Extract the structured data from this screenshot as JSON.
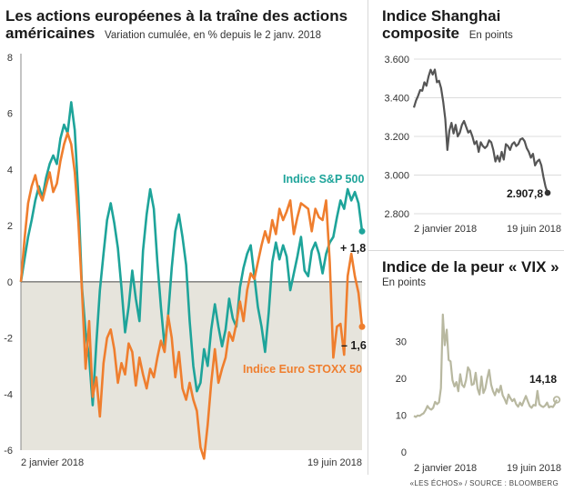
{
  "main": {
    "title_line1": "Les actions européenes à la traîne des actions",
    "title_line2": "américaines",
    "subtitle": "Variation cumulée, en % depuis le 2 janv. 2018"
  },
  "shanghai": {
    "title_line1": "Indice Shanghai",
    "title_line2": "composite",
    "subtitle": "En points"
  },
  "vix": {
    "title": "Indice de la peur « VIX »",
    "subtitle": "En points"
  },
  "footer": "«LES ÉCHOS» / SOURCE : BLOOMBERG",
  "colors": {
    "sp500": "#1ea49a",
    "stoxx": "#ef7e2e",
    "shanghai": "#555555",
    "vix": "#b8b8a0",
    "negative_band": "#e6e4dc",
    "grid": "#d0d0d0"
  },
  "chart_data": [
    {
      "type": "line",
      "title": "Les actions européenes à la traîne des actions américaines",
      "subtitle": "Variation cumulée, en % depuis le 2 janv. 2018",
      "ylim": [
        -6,
        8
      ],
      "yticks": [
        -6,
        -4,
        -2,
        0,
        2,
        4,
        6,
        8
      ],
      "ytick_labels": [
        "-6",
        "-4",
        "-2",
        "0",
        "2",
        "4",
        "6",
        "8"
      ],
      "xlim": [
        "2018-01-02",
        "2018-06-19"
      ],
      "x_tick_labels": [
        "2 janvier 2018",
        "19 juin 2018"
      ],
      "grid": false,
      "negative_shading": true,
      "series": [
        {
          "name": "Indice S&P 500",
          "color": "#1ea49a",
          "end_label": "+ 1,8",
          "values": [
            0,
            0.8,
            1.6,
            2.2,
            2.9,
            3.4,
            3.0,
            3.7,
            4.2,
            4.5,
            4.2,
            5.1,
            5.6,
            5.3,
            6.4,
            5.4,
            3.0,
            -0.2,
            -1.8,
            -2.7,
            -4.4,
            -2.2,
            -0.3,
            1.0,
            2.2,
            2.8,
            2.1,
            1.2,
            -0.2,
            -1.8,
            -0.9,
            0.4,
            -0.6,
            -1.4,
            1.1,
            2.4,
            3.3,
            2.6,
            0.7,
            -0.9,
            -2.3,
            -1.2,
            0.5,
            1.8,
            2.4,
            1.6,
            0.6,
            -1.4,
            -3.0,
            -3.9,
            -3.6,
            -2.4,
            -3.0,
            -1.7,
            -0.8,
            -1.6,
            -2.3,
            -1.7,
            -0.6,
            -1.3,
            -1.6,
            -0.2,
            0.5,
            1.0,
            1.3,
            0.2,
            -0.9,
            -1.6,
            -2.5,
            -1.1,
            0.7,
            1.4,
            0.8,
            1.3,
            0.9,
            -0.3,
            0.3,
            0.9,
            1.6,
            0.4,
            0.2,
            1.1,
            1.4,
            1.0,
            0.3,
            1.0,
            1.4,
            1.6,
            2.3,
            2.9,
            2.6,
            3.3,
            2.9,
            3.2,
            2.8,
            1.8
          ]
        },
        {
          "name": "Indice Euro STOXX 50",
          "color": "#ef7e2e",
          "end_label": "– 1,6",
          "values": [
            0,
            1.5,
            2.8,
            3.4,
            3.8,
            3.2,
            2.9,
            3.4,
            3.9,
            3.2,
            3.5,
            4.3,
            4.9,
            5.3,
            4.9,
            3.9,
            2.1,
            -0.3,
            -3.1,
            -1.4,
            -4.1,
            -3.4,
            -4.8,
            -2.9,
            -2.0,
            -1.7,
            -2.4,
            -3.6,
            -2.9,
            -3.3,
            -2.2,
            -2.5,
            -3.7,
            -2.7,
            -3.3,
            -3.8,
            -3.1,
            -3.4,
            -2.7,
            -2.1,
            -2.5,
            -1.2,
            -2.0,
            -3.4,
            -2.5,
            -3.8,
            -4.2,
            -3.6,
            -4.2,
            -4.6,
            -5.9,
            -6.3,
            -5.1,
            -3.6,
            -2.4,
            -3.6,
            -3.1,
            -2.7,
            -1.8,
            -2.1,
            -1.5,
            -0.7,
            -1.4,
            -0.3,
            0.3,
            0.1,
            0.7,
            1.3,
            1.8,
            1.4,
            2.2,
            1.7,
            2.6,
            2.2,
            2.5,
            2.9,
            1.7,
            2.3,
            2.8,
            2.7,
            2.6,
            1.8,
            2.6,
            2.3,
            2.2,
            2.9,
            0.7,
            -2.7,
            -1.6,
            -1.5,
            -2.6,
            0.2,
            1.0,
            0.2,
            -0.4,
            -1.6
          ]
        }
      ]
    },
    {
      "type": "line",
      "title": "Indice Shanghai composite",
      "subtitle": "En points",
      "ylim": [
        2800,
        3600
      ],
      "yticks": [
        2800,
        3000,
        3200,
        3400,
        3600
      ],
      "ytick_labels": [
        "2.800",
        "3.000",
        "3.200",
        "3.400",
        "3.600"
      ],
      "xlim": [
        "2018-01-02",
        "2018-06-19"
      ],
      "x_tick_labels": [
        "2 janvier 2018",
        "19 juin 2018"
      ],
      "grid": true,
      "series": [
        {
          "name": "",
          "color": "#555555",
          "end_label": "2.907,8",
          "values": [
            3349,
            3385,
            3410,
            3440,
            3436,
            3480,
            3462,
            3510,
            3545,
            3520,
            3546,
            3480,
            3488,
            3450,
            3380,
            3290,
            3130,
            3230,
            3270,
            3215,
            3260,
            3200,
            3220,
            3260,
            3280,
            3250,
            3220,
            3230,
            3200,
            3160,
            3175,
            3120,
            3170,
            3150,
            3140,
            3150,
            3180,
            3170,
            3130,
            3070,
            3100,
            3070,
            3120,
            3080,
            3160,
            3150,
            3130,
            3160,
            3170,
            3150,
            3160,
            3185,
            3190,
            3175,
            3140,
            3120,
            3090,
            3110,
            3050,
            3070,
            3080,
            3050,
            2990,
            2940,
            2907.8
          ]
        }
      ]
    },
    {
      "type": "line",
      "title": "Indice de la peur « VIX »",
      "subtitle": "En points",
      "ylim": [
        0,
        40
      ],
      "yticks": [
        0,
        10,
        20,
        30
      ],
      "ytick_labels": [
        "0",
        "10",
        "20",
        "30"
      ],
      "xlim": [
        "2018-01-02",
        "2018-06-19"
      ],
      "x_tick_labels": [
        "2 janvier 2018",
        "19 juin 2018"
      ],
      "grid": false,
      "series": [
        {
          "name": "",
          "color": "#b8b8a0",
          "end_label": "14,18",
          "values": [
            9.8,
            9.5,
            9.9,
            9.8,
            10.2,
            10.5,
            11.3,
            12.5,
            11.8,
            11.5,
            12.0,
            13.6,
            13.0,
            13.5,
            17.3,
            37.3,
            29.0,
            33.2,
            25.0,
            24.6,
            19.5,
            17.8,
            19.0,
            16.5,
            21.1,
            18.2,
            17.6,
            19.5,
            23.0,
            22.1,
            18.2,
            18.5,
            21.5,
            17.2,
            15.6,
            20.5,
            16.0,
            17.2,
            20.0,
            22.3,
            18.3,
            16.5,
            15.4,
            17.1,
            16.2,
            18.0,
            15.4,
            14.4,
            13.1,
            15.6,
            14.6,
            13.8,
            14.4,
            13.0,
            12.3,
            13.4,
            12.6,
            13.9,
            15.2,
            13.8,
            12.5,
            12.0,
            12.8,
            12.6,
            16.6,
            13.0,
            12.5,
            12.2,
            12.6,
            13.4,
            12.1,
            12.4,
            12.2,
            13.0,
            14.18
          ]
        }
      ]
    }
  ]
}
